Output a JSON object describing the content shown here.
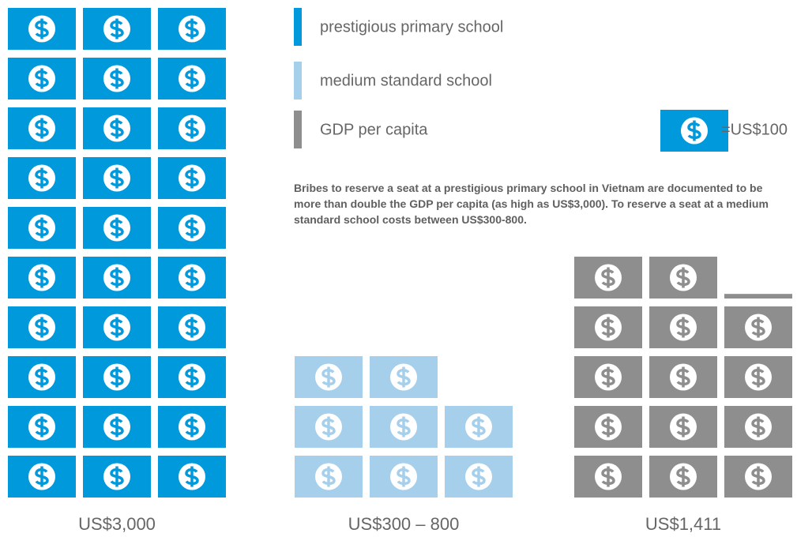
{
  "chart_data": {
    "type": "pictogram",
    "unit": 100,
    "unit_label": "=US$100",
    "note": "Bribes to reserve a seat at a prestigious primary school in Vietnam are documented to be more than double the GDP per capita (as high as US$3,000). To reserve a seat at a medium standard school costs between US$300-800.",
    "series": [
      {
        "name": "prestigious primary school",
        "color": "#0099dc",
        "values": [
          3000
        ],
        "value_labels": [
          "US$3,000"
        ]
      },
      {
        "name": "medium standard school",
        "color": "#a6cfec",
        "values": [
          800
        ],
        "value_labels": [
          "US$300 – 800"
        ]
      },
      {
        "name": "GDP per capita",
        "color": "#8e8e8e",
        "values": [
          1411
        ],
        "value_labels": [
          "US$1,411"
        ]
      }
    ]
  }
}
